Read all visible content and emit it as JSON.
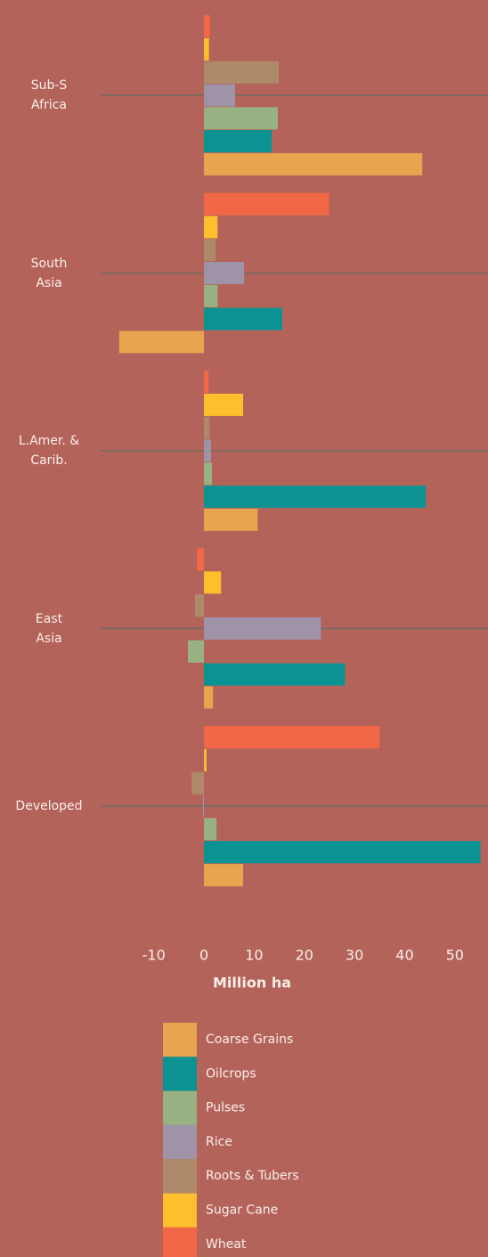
{
  "chart_data": {
    "type": "bar",
    "orientation": "horizontal",
    "x_label": "Million ha",
    "categories": [
      "Sub-S\nAfrica",
      "South\nAsia",
      "L.Amer. &\nCarib.",
      "East\nAsia",
      "Developed"
    ],
    "series": [
      {
        "name": "Coarse Grains",
        "color": "#e8a44f",
        "values": [
          43.5,
          -16.9,
          10.7,
          1.8,
          7.8
        ]
      },
      {
        "name": "Oilcrops",
        "color": "#0b9393",
        "values": [
          13.5,
          15.6,
          44.2,
          28.1,
          55.1
        ]
      },
      {
        "name": "Pulses",
        "color": "#98b183",
        "values": [
          14.7,
          2.7,
          1.6,
          -3.2,
          2.5
        ]
      },
      {
        "name": "Rice",
        "color": "#9e93a7",
        "values": [
          6.2,
          8.0,
          1.4,
          23.3,
          -0.2
        ]
      },
      {
        "name": "Roots & Tubers",
        "color": "#ae8a6b",
        "values": [
          14.9,
          2.3,
          1.1,
          -1.8,
          -2.5
        ]
      },
      {
        "name": "Sugar Cane",
        "color": "#fdbf2d",
        "values": [
          1.0,
          2.7,
          7.8,
          3.4,
          0.5
        ]
      },
      {
        "name": "Wheat",
        "color": "#f26847",
        "values": [
          1.2,
          24.9,
          0.9,
          -1.4,
          35.0
        ]
      }
    ],
    "xlim": [
      -20.6,
      56.6
    ],
    "xticks": [
      -10,
      0,
      10,
      20,
      30,
      40,
      50
    ]
  }
}
